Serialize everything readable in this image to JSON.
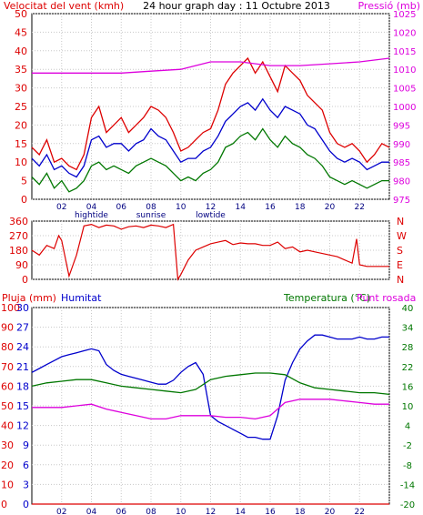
{
  "header": {
    "wind_label": "Velocitat del vent (kmh)",
    "title": "24 hour graph day : 11 Octubre 2013",
    "pressure_label": "Pressió (mb)"
  },
  "bottom_header": {
    "rain_label": "Pluja (mm)",
    "humidity_label": "Humitat",
    "temp_label": "Temperatura (°C)",
    "dew_label": "Punt rosada"
  },
  "colors": {
    "wind_gust": "#dd0000",
    "wind_avg": "#0000cc",
    "wind_low": "#007700",
    "pressure": "#dd00dd",
    "direction": "#dd0000",
    "humidity": "#0000cc",
    "temperature": "#007700",
    "dewpoint": "#dd00dd",
    "rain": "#dd0000"
  },
  "chart_data": [
    {
      "type": "line",
      "title": "24 hour graph day : 11 Octubre 2013",
      "ylabel": "Velocitat del vent (kmh)",
      "ylabel_right": "Pressió (mb)",
      "ylim": [
        0,
        50
      ],
      "ylim_right": [
        975,
        1025
      ],
      "yticks": [
        "0",
        "5",
        "10",
        "15",
        "20",
        "25",
        "30",
        "35",
        "40",
        "45",
        "50"
      ],
      "yticks_right": [
        "975",
        "980",
        "985",
        "990",
        "995",
        "1000",
        "1005",
        "1010",
        "1015",
        "1020",
        "1025"
      ],
      "xticks": [
        "02",
        "04",
        "06",
        "08",
        "10",
        "12",
        "14",
        "16",
        "18",
        "20",
        "22",
        ""
      ],
      "xtick_hours": [
        2,
        4,
        6,
        8,
        10,
        12,
        14,
        16,
        18,
        20,
        22,
        24
      ],
      "tide_labels": [
        {
          "hour": 4,
          "label": "hightide"
        },
        {
          "hour": 8,
          "label": "sunrise"
        },
        {
          "hour": 12,
          "label": "lowtide"
        }
      ],
      "grid": true,
      "series": [
        {
          "key": "gust",
          "axis": "left",
          "x": [
            0,
            0.5,
            1,
            1.5,
            2,
            2.5,
            3,
            3.5,
            4,
            4.5,
            5,
            5.5,
            6,
            6.5,
            7,
            7.5,
            8,
            8.5,
            9,
            9.5,
            10,
            10.5,
            11,
            11.5,
            12,
            12.5,
            13,
            13.5,
            14,
            14.5,
            15,
            15.5,
            16,
            16.5,
            17,
            17.5,
            18,
            18.5,
            19,
            19.5,
            20,
            20.5,
            21,
            21.5,
            22,
            22.5,
            23,
            23.5,
            24
          ],
          "values": [
            14,
            12,
            16,
            10,
            11,
            9,
            8,
            12,
            22,
            25,
            18,
            20,
            22,
            18,
            20,
            22,
            25,
            24,
            22,
            18,
            13,
            14,
            16,
            18,
            19,
            24,
            31,
            34,
            36,
            38,
            34,
            37,
            33,
            29,
            36,
            34,
            32,
            28,
            26,
            24,
            18,
            15,
            14,
            15,
            13,
            10,
            12,
            15,
            14
          ]
        },
        {
          "key": "avg",
          "axis": "left",
          "x": [
            0,
            0.5,
            1,
            1.5,
            2,
            2.5,
            3,
            3.5,
            4,
            4.5,
            5,
            5.5,
            6,
            6.5,
            7,
            7.5,
            8,
            8.5,
            9,
            9.5,
            10,
            10.5,
            11,
            11.5,
            12,
            12.5,
            13,
            13.5,
            14,
            14.5,
            15,
            15.5,
            16,
            16.5,
            17,
            17.5,
            18,
            18.5,
            19,
            19.5,
            20,
            20.5,
            21,
            21.5,
            22,
            22.5,
            23,
            23.5,
            24
          ],
          "values": [
            11,
            9,
            12,
            8,
            9,
            7,
            6,
            9,
            16,
            17,
            14,
            15,
            15,
            13,
            15,
            16,
            19,
            17,
            16,
            13,
            10,
            11,
            11,
            13,
            14,
            17,
            21,
            23,
            25,
            26,
            24,
            27,
            24,
            22,
            25,
            24,
            23,
            20,
            19,
            16,
            13,
            11,
            10,
            11,
            10,
            8,
            9,
            10,
            10
          ]
        },
        {
          "key": "low",
          "axis": "left",
          "x": [
            0,
            0.5,
            1,
            1.5,
            2,
            2.5,
            3,
            3.5,
            4,
            4.5,
            5,
            5.5,
            6,
            6.5,
            7,
            7.5,
            8,
            8.5,
            9,
            9.5,
            10,
            10.5,
            11,
            11.5,
            12,
            12.5,
            13,
            13.5,
            14,
            14.5,
            15,
            15.5,
            16,
            16.5,
            17,
            17.5,
            18,
            18.5,
            19,
            19.5,
            20,
            20.5,
            21,
            21.5,
            22,
            22.5,
            23,
            23.5,
            24
          ],
          "values": [
            6,
            4,
            7,
            3,
            5,
            2,
            3,
            5,
            9,
            10,
            8,
            9,
            8,
            7,
            9,
            10,
            11,
            10,
            9,
            7,
            5,
            6,
            5,
            7,
            8,
            10,
            14,
            15,
            17,
            18,
            16,
            19,
            16,
            14,
            17,
            15,
            14,
            12,
            11,
            9,
            6,
            5,
            4,
            5,
            4,
            3,
            4,
            5,
            5
          ]
        },
        {
          "key": "pressure",
          "axis": "right",
          "x": [
            0,
            2,
            4,
            6,
            8,
            10,
            11,
            12,
            14,
            16,
            18,
            20,
            22,
            24
          ],
          "values": [
            1009,
            1009,
            1009,
            1009,
            1009.5,
            1010,
            1011,
            1012,
            1012,
            1011,
            1011,
            1011.5,
            1012,
            1013
          ]
        }
      ]
    },
    {
      "type": "scatter",
      "ylabel_right": "Wind direction",
      "ylim": [
        0,
        360
      ],
      "yticks": [
        "0",
        "90",
        "180",
        "270",
        "360"
      ],
      "yticks_right": [
        "N",
        "E",
        "S",
        "W",
        "N"
      ],
      "series": [
        {
          "key": "direction",
          "x": [
            0,
            0.5,
            1,
            1.5,
            1.8,
            2,
            2.5,
            3,
            3.5,
            4,
            4.5,
            5,
            5.5,
            6,
            6.5,
            7,
            7.5,
            8,
            8.5,
            9,
            9.5,
            9.8,
            10,
            10.5,
            11,
            11.5,
            12,
            12.5,
            13,
            13.5,
            14,
            14.5,
            15,
            15.5,
            16,
            16.5,
            17,
            17.5,
            18,
            18.5,
            19,
            19.5,
            20,
            20.5,
            21,
            21.5,
            21.8,
            22,
            22.5,
            23,
            23.5,
            24
          ],
          "values": [
            180,
            150,
            210,
            190,
            270,
            240,
            20,
            150,
            330,
            340,
            320,
            335,
            330,
            310,
            325,
            330,
            320,
            335,
            330,
            320,
            340,
            0,
            30,
            120,
            180,
            200,
            220,
            230,
            240,
            215,
            225,
            220,
            220,
            210,
            210,
            230,
            190,
            200,
            170,
            180,
            170,
            160,
            150,
            140,
            120,
            100,
            250,
            90,
            80,
            80,
            80,
            80
          ]
        }
      ]
    },
    {
      "type": "line",
      "ylabel": "Pluja (mm)",
      "ylabel2": "Humitat",
      "ylabel_right": "Temperatura (°C)",
      "ylabel_right2": "Punt rosada",
      "ylim_rain": [
        0,
        30
      ],
      "yticks_rain": [
        "0",
        "3",
        "6",
        "9",
        "12",
        "15",
        "18",
        "21",
        "24",
        "27",
        "30"
      ],
      "ylim_humidity": [
        0,
        100
      ],
      "yticks_humidity": [
        "0",
        "10",
        "20",
        "30",
        "40",
        "50",
        "60",
        "70",
        "80",
        "90",
        "100"
      ],
      "ylim_temp": [
        -20,
        40
      ],
      "yticks_temp": [
        "-20",
        "-14",
        "-8",
        "-2",
        "4",
        "10",
        "16",
        "22",
        "28",
        "34",
        "40"
      ],
      "xticks": [
        "02",
        "04",
        "06",
        "08",
        "10",
        "12",
        "14",
        "16",
        "18",
        "20",
        "22",
        ""
      ],
      "series": [
        {
          "key": "humidity",
          "axis": "humidity",
          "x": [
            0,
            0.5,
            1,
            1.5,
            2,
            2.5,
            3,
            3.5,
            4,
            4.5,
            5,
            5.5,
            6,
            6.5,
            7,
            7.5,
            8,
            8.5,
            9,
            9.5,
            10,
            10.5,
            11,
            11.5,
            12,
            12.5,
            13,
            13.5,
            14,
            14.5,
            15,
            15.5,
            16,
            16.5,
            17,
            17.5,
            18,
            18.5,
            19,
            19.5,
            20,
            20.5,
            21,
            21.5,
            22,
            22.5,
            23,
            23.5,
            24
          ],
          "values": [
            67,
            69,
            71,
            73,
            75,
            76,
            77,
            78,
            79,
            78,
            71,
            68,
            66,
            65,
            64,
            63,
            62,
            61,
            61,
            63,
            67,
            70,
            72,
            66,
            45,
            42,
            40,
            38,
            36,
            34,
            34,
            33,
            33,
            45,
            63,
            72,
            79,
            83,
            86,
            86,
            85,
            84,
            84,
            84,
            85,
            84,
            84,
            85,
            85
          ]
        },
        {
          "key": "temperature",
          "axis": "temp",
          "x": [
            0,
            1,
            2,
            3,
            4,
            5,
            6,
            7,
            8,
            9,
            10,
            11,
            12,
            13,
            14,
            15,
            16,
            17,
            18,
            19,
            20,
            21,
            22,
            23,
            24
          ],
          "values": [
            16,
            17,
            17.5,
            18,
            18,
            17,
            16,
            15.5,
            15,
            14.5,
            14,
            15,
            18,
            19,
            19.5,
            20,
            20,
            19.5,
            17,
            15.5,
            15,
            14.5,
            14,
            14,
            13.5
          ]
        },
        {
          "key": "dewpoint",
          "axis": "temp",
          "x": [
            0,
            1,
            2,
            3,
            4,
            5,
            6,
            7,
            8,
            9,
            10,
            11,
            12,
            13,
            14,
            15,
            16,
            17,
            18,
            19,
            20,
            21,
            22,
            23,
            24
          ],
          "values": [
            9.5,
            9.5,
            9.5,
            10,
            10.5,
            9,
            8,
            7,
            6,
            6,
            7,
            7,
            7,
            6.5,
            6.5,
            6,
            7,
            11,
            12,
            12,
            12,
            11.5,
            11,
            10.5,
            10.5
          ]
        },
        {
          "key": "rain",
          "axis": "rain",
          "x": [
            0,
            24
          ],
          "values": [
            0,
            0
          ]
        }
      ]
    }
  ]
}
